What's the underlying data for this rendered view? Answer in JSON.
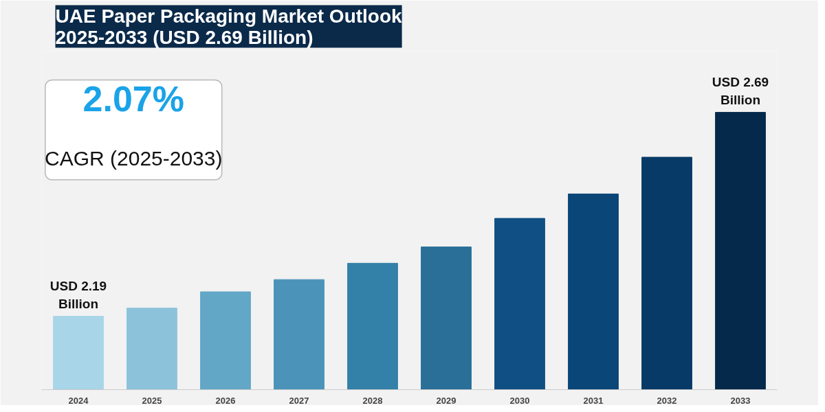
{
  "chart_data": {
    "type": "bar",
    "title": "UAE Paper Packaging Market Outlook\n2025-2033 (USD 2.69 Billion)",
    "categories": [
      "2024",
      "2025",
      "2026",
      "2027",
      "2028",
      "2029",
      "2030",
      "2031",
      "2032",
      "2033"
    ],
    "values": [
      2.19,
      2.21,
      2.25,
      2.28,
      2.32,
      2.36,
      2.43,
      2.49,
      2.58,
      2.69
    ],
    "colors": [
      "#a8d5e8",
      "#8cc3db",
      "#62a7c6",
      "#4b93b8",
      "#3380a8",
      "#2a6f98",
      "#0f4f83",
      "#0a4677",
      "#073a66",
      "#05294a"
    ],
    "ylim": [
      2.01,
      2.84
    ],
    "tick_labels": "x",
    "value_labels": [
      "USD 2.19 Billion",
      null,
      null,
      null,
      null,
      null,
      null,
      null,
      null,
      "USD 2.69 Billion"
    ],
    "annotations": [
      "2.07%",
      "CAGR (2025-2033)"
    ],
    "grid": false
  }
}
